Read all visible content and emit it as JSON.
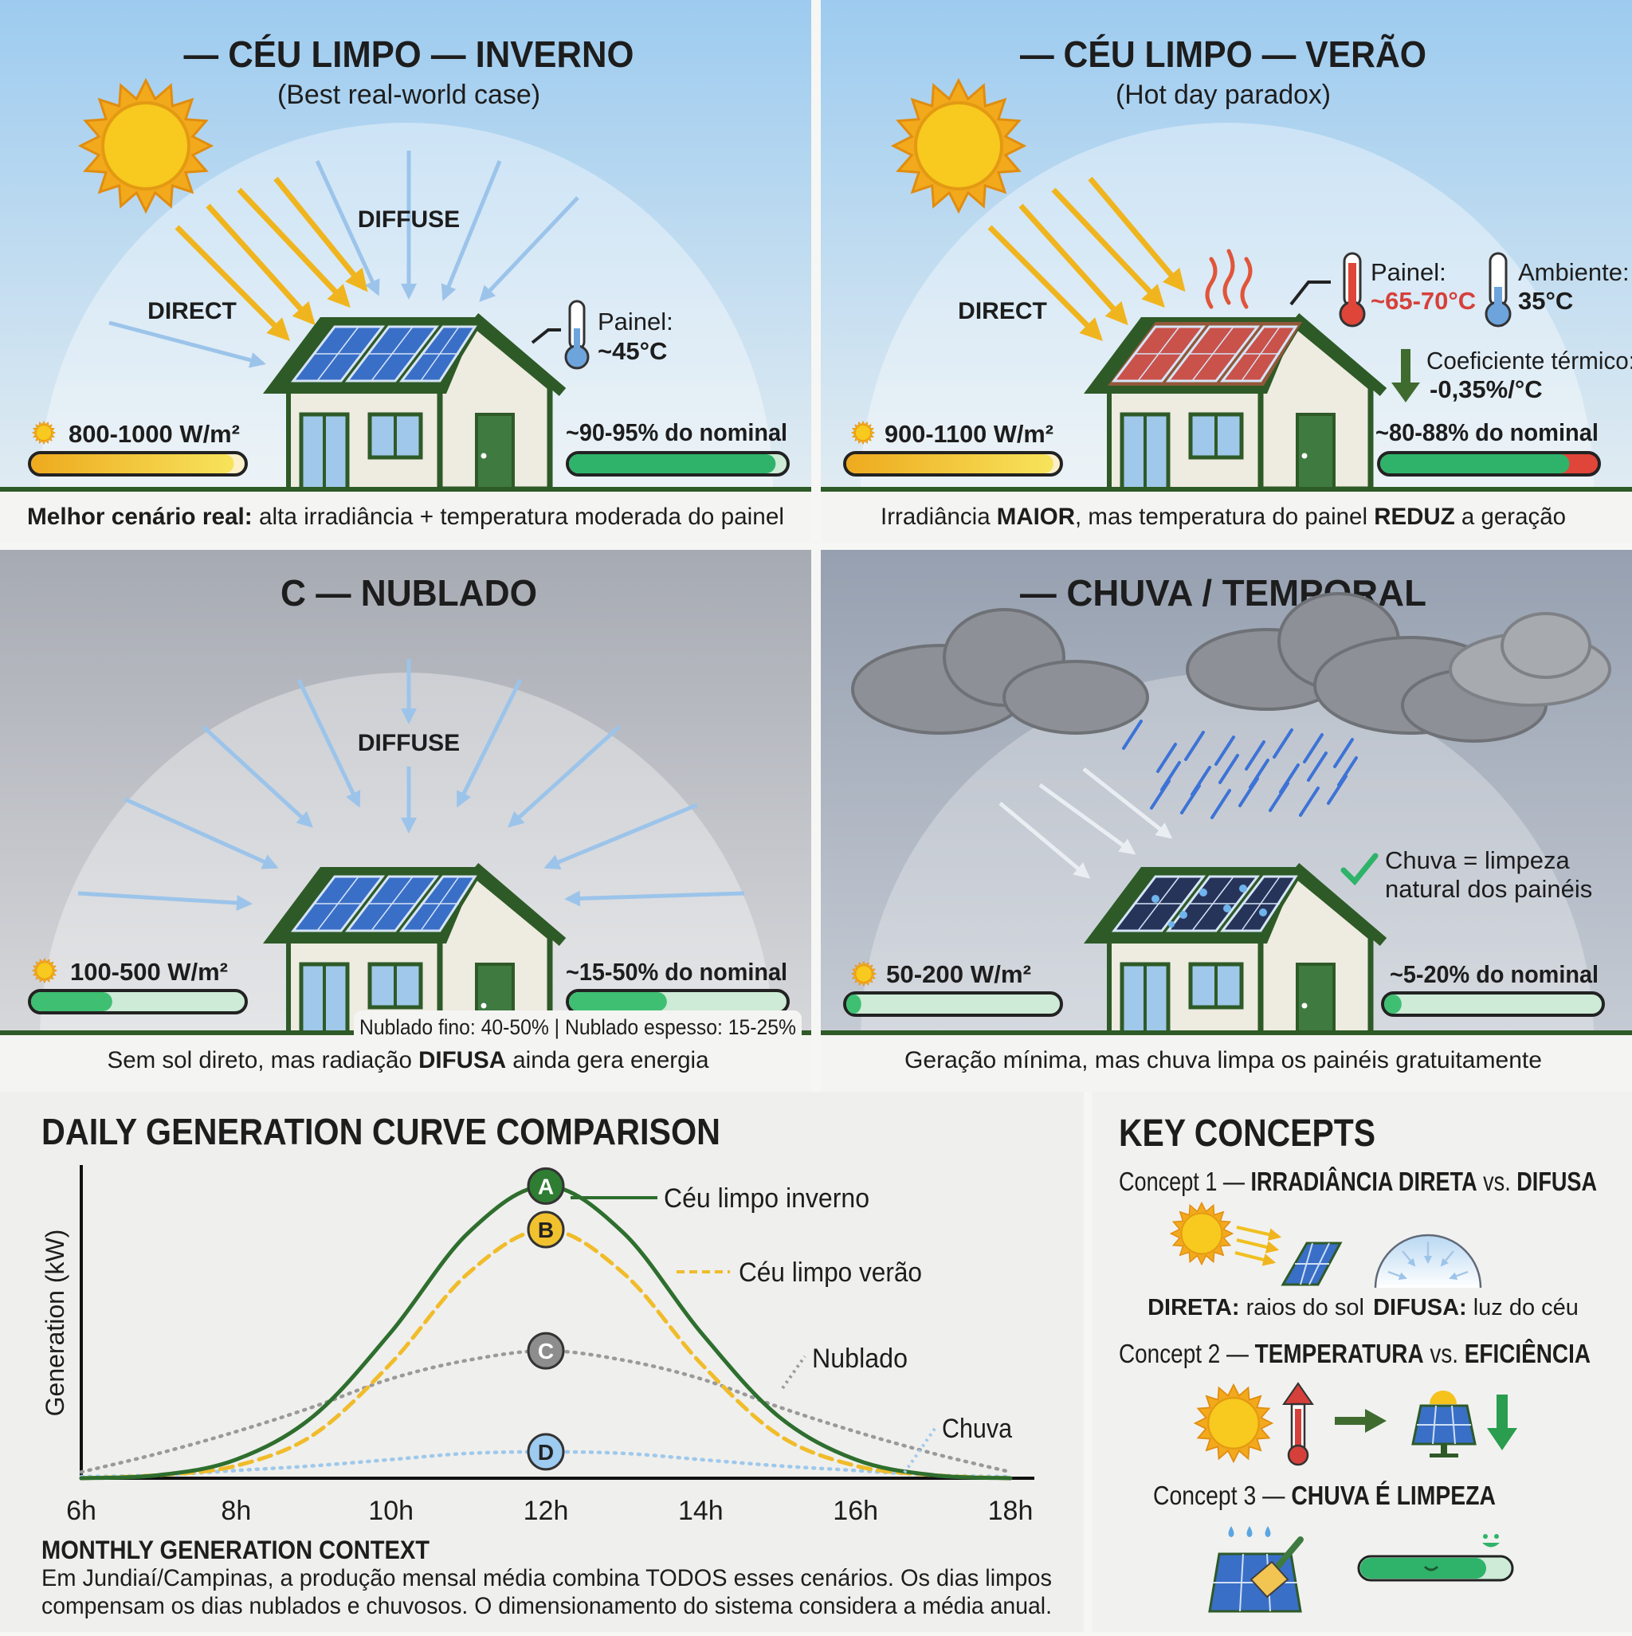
{
  "panels": {
    "a": {
      "title": "— CÉU LIMPO — INVERNO",
      "subtitle": "(Best real-world case)",
      "direct_label": "DIRECT",
      "diffuse_label": "DIFFUSE",
      "temp_label": "Painel:",
      "temp_value": "~45°C",
      "irradiance": "800-1000 W/m²",
      "output": "~90-95% do nominal",
      "irradiance_level": 0.95,
      "output_level": 0.95,
      "caption": [
        {
          "text": "Melhor cenário real:",
          "bold": true
        },
        {
          "text": " alta irradiância + temperatura moderada do painel"
        }
      ]
    },
    "b": {
      "title": "— CÉU LIMPO — VERÃO",
      "subtitle": "(Hot day paradox)",
      "direct_label": "DIRECT",
      "panel_temp_label": "Painel:",
      "panel_temp_value": "~65-70°C",
      "ambient_label": "Ambiente:",
      "ambient_value": "35°C",
      "coef_label": "Coeficiente térmico:",
      "coef_value": "-0,35%/°C",
      "irradiance": "900-1100 W/m²",
      "output": "~80-88% do nominal",
      "irradiance_level": 0.97,
      "output_level": 0.87,
      "loss_level": 0.13,
      "caption": [
        {
          "text": "Irradiância "
        },
        {
          "text": "MAIOR",
          "bold": true
        },
        {
          "text": ", mas temperatura do painel "
        },
        {
          "text": "REDUZ",
          "bold": true
        },
        {
          "text": " a geração"
        }
      ]
    },
    "c": {
      "title": "C — NUBLADO",
      "diffuse_label": "DIFFUSE",
      "irradiance": "100-500 W/m²",
      "output": "~15-50% do nominal",
      "irradiance_level": 0.38,
      "output_level": 0.45,
      "note": "Nublado fino: 40-50% | Nublado espesso: 15-25%",
      "caption": [
        {
          "text": "Sem sol direto, mas radiação "
        },
        {
          "text": "DIFUSA",
          "bold": true
        },
        {
          "text": " ainda gera energia"
        }
      ]
    },
    "d": {
      "title": "— CHUVA / TEMPORAL",
      "rain_note_1": "Chuva = limpeza",
      "rain_note_2": "natural dos painéis",
      "irradiance": "50-200 W/m²",
      "output": "~5-20% do nominal",
      "irradiance_level": 0.07,
      "output_level": 0.08,
      "caption": [
        {
          "text": "Geração mínima, mas chuva limpa os painéis gratuitamente"
        }
      ]
    }
  },
  "chart_data": {
    "type": "line",
    "title": "DAILY GENERATION CURVE COMPARISON",
    "xlabel": "",
    "ylabel": "Generation (kW)",
    "x": [
      6,
      7,
      8,
      9,
      10,
      11,
      12,
      13,
      14,
      15,
      16,
      17,
      18
    ],
    "x_tick_labels": [
      "6h",
      "8h",
      "10h",
      "12h",
      "14h",
      "16h",
      "18h"
    ],
    "x_ticks": [
      6,
      8,
      10,
      12,
      14,
      16,
      18
    ],
    "xlim": [
      6,
      18
    ],
    "ylim": [
      0,
      100
    ],
    "y_ticks_shown": false,
    "grid": false,
    "series": [
      {
        "name": "Céu limpo inverno",
        "marker": "A",
        "style": "solid",
        "color": "#2e6e2e",
        "values": [
          0,
          1,
          6,
          20,
          47,
          79,
          94,
          79,
          47,
          20,
          6,
          1,
          0
        ]
      },
      {
        "name": "Céu limpo verão",
        "marker": "B",
        "style": "dashed",
        "color": "#f0bc2a",
        "values": [
          0,
          1,
          4,
          14,
          37,
          66,
          80,
          66,
          37,
          14,
          4,
          1,
          0
        ]
      },
      {
        "name": "Nublado",
        "marker": "C",
        "style": "dotted",
        "color": "#9a9a9a",
        "values": [
          2,
          8,
          15,
          23,
          32,
          38,
          41,
          38,
          32,
          23,
          15,
          8,
          2
        ]
      },
      {
        "name": "Chuva",
        "marker": "D",
        "style": "dotted",
        "color": "#9ec8ec",
        "values": [
          0.5,
          1,
          2.5,
          4,
          6,
          8,
          8.5,
          8,
          6,
          4,
          2.5,
          1,
          0.5
        ]
      }
    ]
  },
  "monthly": {
    "title": "MONTHLY GENERATION CONTEXT",
    "line_1": "Em Jundiaí/Campinas, a produção mensal média combina TODOS esses cenários. Os dias limpos",
    "line_2": "compensam os dias nublados e chuvosos. O dimensionamento do sistema considera a média anual."
  },
  "key_concepts": {
    "title": "KEY CONCEPTS",
    "concept_1": {
      "prefix": "Concept 1 — ",
      "a": "IRRADIÂNCIA DIRETA",
      "vs": " vs. ",
      "b": "DIFUSA",
      "direct_bold": "DIRETA:",
      "direct_text": " raios do sol",
      "diffuse_bold": "DIFUSA:",
      "diffuse_text": " luz do céu"
    },
    "concept_2": {
      "prefix": "Concept 2 — ",
      "a": "TEMPERATURA",
      "vs": " vs. ",
      "b": "EFICIÊNCIA"
    },
    "concept_3": {
      "prefix": "Concept 3 — ",
      "a": "CHUVA É LIMPEZA"
    }
  },
  "colors": {
    "roof_green": "#2e5a27",
    "panel_blue": "#3a6fc7",
    "panel_hot": "#c9524a",
    "output_green": "#2fb36a",
    "loss_red": "#e0453a",
    "sun_yellow": "#f8c91e"
  }
}
